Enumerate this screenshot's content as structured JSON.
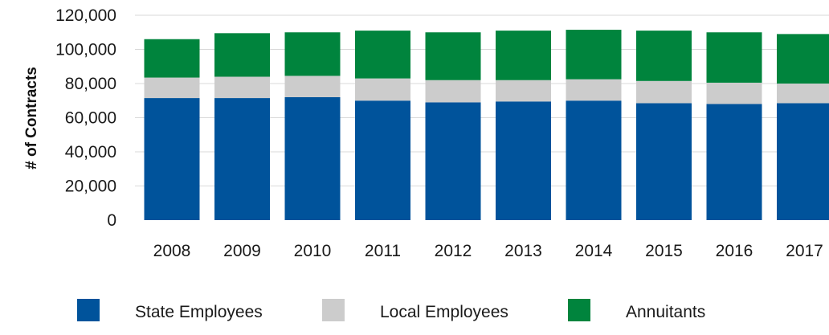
{
  "chart_data": {
    "type": "bar",
    "stacked": true,
    "title": "",
    "xlabel": "",
    "ylabel": "# of Contracts",
    "categories": [
      "2008",
      "2009",
      "2010",
      "2011",
      "2012",
      "2013",
      "2014",
      "2015",
      "2016",
      "2017"
    ],
    "ylim": [
      0,
      120000
    ],
    "yticks": [
      0,
      20000,
      40000,
      60000,
      80000,
      100000,
      120000
    ],
    "ytick_labels": [
      "0",
      "20,000",
      "40,000",
      "60,000",
      "80,000",
      "100,000",
      "120,000"
    ],
    "grid": true,
    "legend_position": "bottom",
    "series": [
      {
        "name": "State Employees",
        "color": "#00539b",
        "values": [
          71500,
          71500,
          72000,
          70000,
          69000,
          69500,
          70000,
          68500,
          68000,
          68500
        ]
      },
      {
        "name": "Local Employees",
        "color": "#cccccc",
        "values": [
          12000,
          12500,
          12500,
          13000,
          13000,
          12500,
          12500,
          13000,
          12500,
          11500
        ]
      },
      {
        "name": "Annuitants",
        "color": "#00843d",
        "values": [
          22500,
          25500,
          25500,
          28000,
          28000,
          29000,
          29000,
          29500,
          29500,
          29000
        ]
      }
    ]
  }
}
